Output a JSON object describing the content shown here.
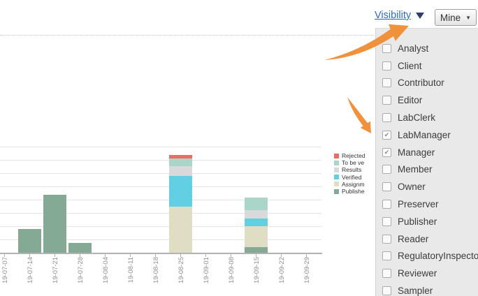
{
  "toolbar": {
    "visibility": {
      "label": "Visibility"
    },
    "mine": {
      "label": "Mine",
      "caret": "▼"
    }
  },
  "icons": {
    "visibility_caret": "triangle-down",
    "mine_caret": "triangle-down",
    "checkbox_check": "✔",
    "annotation_arrow": "orange-arrow"
  },
  "visibility_dropdown": {
    "checkmark": "✔",
    "items": [
      {
        "label": "Analyst",
        "checked": false
      },
      {
        "label": "Client",
        "checked": false
      },
      {
        "label": "Contributor",
        "checked": false
      },
      {
        "label": "Editor",
        "checked": false
      },
      {
        "label": "LabClerk",
        "checked": false
      },
      {
        "label": "LabManager",
        "checked": true
      },
      {
        "label": "Manager",
        "checked": true
      },
      {
        "label": "Member",
        "checked": false
      },
      {
        "label": "Owner",
        "checked": false
      },
      {
        "label": "Preserver",
        "checked": false
      },
      {
        "label": "Publisher",
        "checked": false
      },
      {
        "label": "Reader",
        "checked": false
      },
      {
        "label": "RegulatoryInspector",
        "checked": false
      },
      {
        "label": "Reviewer",
        "checked": false
      },
      {
        "label": "Sampler",
        "checked": false
      }
    ]
  },
  "chart_data": {
    "type": "bar",
    "stacked": true,
    "title": "",
    "xlabel": "",
    "ylabel": "",
    "ylim": [
      0,
      8
    ],
    "gridlines": true,
    "gridline_unit": 1,
    "legend_position": "right",
    "categories": [
      "19-07-07",
      "19-07-14",
      "19-07-21",
      "19-07-28",
      "19-08-04",
      "19-08-11",
      "19-08-18",
      "19-08-25",
      "19-09-01",
      "19-09-08",
      "19-09-15",
      "19-09-22",
      "19-09-29"
    ],
    "series": [
      {
        "name": "Publishe",
        "color": "#84aa96",
        "values": [
          0,
          1.8,
          4.35,
          0.75,
          0,
          0,
          0,
          0,
          0,
          0,
          0.4,
          0,
          0
        ]
      },
      {
        "name": "Assignm",
        "color": "#dfddc3",
        "values": [
          0,
          0,
          0,
          0,
          0,
          0,
          0,
          3.45,
          0,
          0,
          1.6,
          0,
          0
        ]
      },
      {
        "name": "Verified",
        "color": "#63cfe2",
        "values": [
          0,
          0,
          0,
          0,
          0,
          0,
          0,
          2.35,
          0,
          0,
          0.6,
          0,
          0
        ]
      },
      {
        "name": "Results",
        "color": "#d9d9db",
        "values": [
          0,
          0,
          0,
          0,
          0,
          0,
          0,
          0.75,
          0,
          0,
          0.6,
          0,
          0
        ]
      },
      {
        "name": "To be ve",
        "color": "#a9d6c9",
        "values": [
          0,
          0,
          0,
          0,
          0,
          0,
          0,
          0.55,
          0,
          0,
          0.95,
          0,
          0
        ]
      },
      {
        "name": "Rejected",
        "color": "#ef6a60",
        "values": [
          0,
          0,
          0,
          0,
          0,
          0,
          0,
          0.25,
          0,
          0,
          0,
          0,
          0
        ]
      }
    ],
    "legend_order_top_to_bottom": [
      "Rejected",
      "To be ve",
      "Results",
      "Verified",
      "Assignm",
      "Publishe"
    ]
  },
  "annotations": {
    "arrow_color": "#f0923c",
    "arrows": [
      "arrow-to-visibility",
      "arrow-to-labmanager"
    ]
  }
}
